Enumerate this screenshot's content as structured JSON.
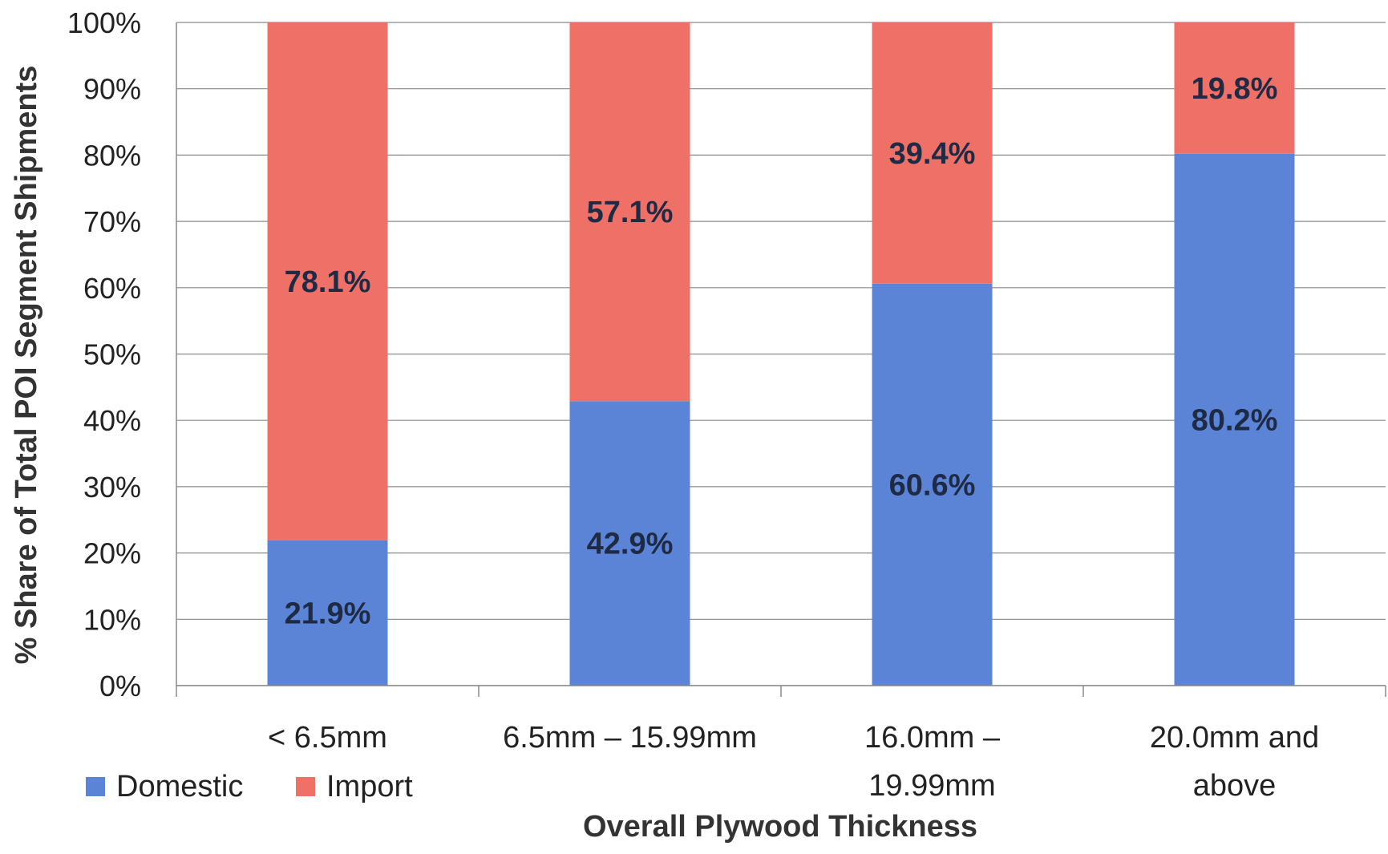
{
  "chart_data": {
    "type": "bar",
    "stacked": true,
    "categories": [
      "< 6.5mm",
      "6.5mm – 15.99mm",
      "16.0mm – 19.99mm",
      "20.0mm and above"
    ],
    "category_lines": [
      [
        "< 6.5mm"
      ],
      [
        "6.5mm – 15.99mm"
      ],
      [
        "16.0mm –",
        "19.99mm"
      ],
      [
        "20.0mm and",
        "above"
      ]
    ],
    "series": [
      {
        "name": "Domestic",
        "color": "#5b84d6",
        "values": [
          21.9,
          42.9,
          60.6,
          80.2
        ],
        "labels": [
          "21.9%",
          "42.9%",
          "60.6%",
          "80.2%"
        ]
      },
      {
        "name": "Import",
        "color": "#ee7066",
        "values": [
          78.1,
          57.1,
          39.4,
          19.8
        ],
        "labels": [
          "78.1%",
          "57.1%",
          "39.4%",
          "19.8%"
        ]
      }
    ],
    "xlabel": "Overall Plywood Thickness",
    "ylabel": "% Share of Total POI Segment Shipments",
    "ylim": [
      0,
      100
    ],
    "yticks": [
      "0%",
      "10%",
      "20%",
      "30%",
      "40%",
      "50%",
      "60%",
      "70%",
      "80%",
      "90%",
      "100%"
    ],
    "grid": true,
    "legend_position": "bottom-left"
  }
}
